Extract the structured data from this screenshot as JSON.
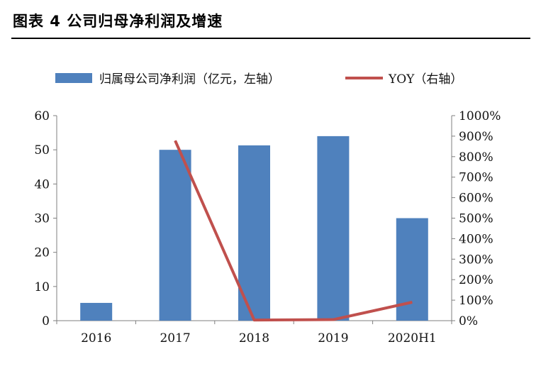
{
  "figure": {
    "title": "图表 4 公司归母净利润及增速"
  },
  "chart_data": {
    "type": "bar",
    "categories": [
      "2016",
      "2017",
      "2018",
      "2019",
      "2020H1"
    ],
    "series": [
      {
        "name": "归属母公司净利润（亿元，左轴）",
        "type": "bar",
        "axis": "left",
        "color": "#4f81bd",
        "values": [
          5.2,
          50.0,
          51.3,
          54.0,
          30.0
        ]
      },
      {
        "name": "YOY（右轴）",
        "type": "line",
        "axis": "right",
        "color": "#c0504d",
        "values": [
          null,
          878,
          3,
          5,
          90
        ]
      }
    ],
    "y_left": {
      "min": 0,
      "max": 60,
      "ticks": [
        "0",
        "10",
        "20",
        "30",
        "40",
        "50",
        "60"
      ]
    },
    "y_right": {
      "min": 0,
      "max": 1000,
      "ticks": [
        "0%",
        "100%",
        "200%",
        "300%",
        "400%",
        "500%",
        "600%",
        "700%",
        "800%",
        "900%",
        "1000%"
      ]
    },
    "grid": false,
    "legend_position": "top"
  }
}
